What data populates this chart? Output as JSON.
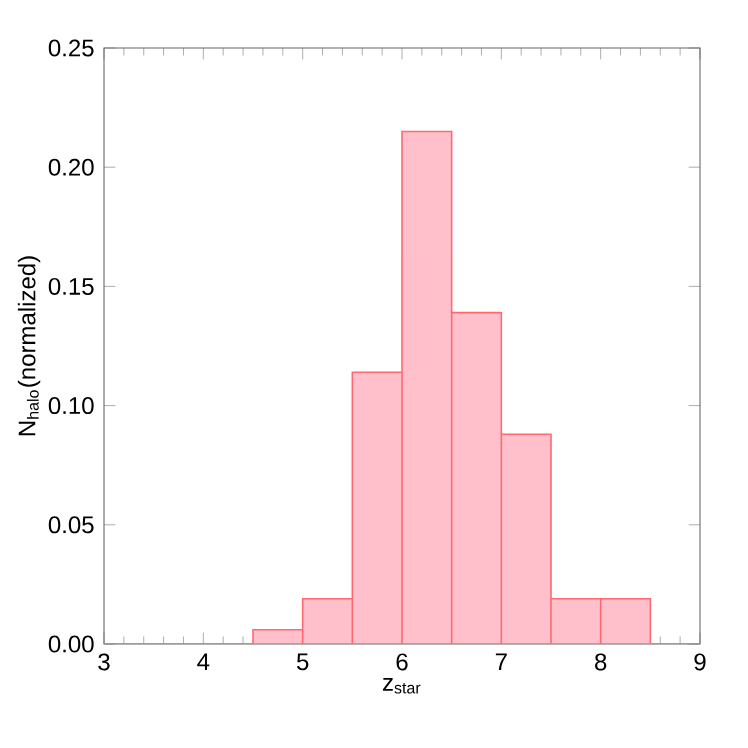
{
  "chart_data": {
    "type": "histogram",
    "xlabel": "z$_{star}$",
    "ylabel": "N$_{halo}$(normalized)",
    "bins": [
      3.0,
      3.5,
      4.0,
      4.5,
      5.0,
      5.5,
      6.0,
      6.5,
      7.0,
      7.5,
      8.0,
      8.5,
      9.0
    ],
    "values": [
      0,
      0,
      0,
      0.006,
      0.019,
      0.114,
      0.215,
      0.139,
      0.088,
      0.019,
      0.019,
      0
    ],
    "color": "#ffc0cb",
    "xlim": [
      3,
      9
    ],
    "ylim": [
      0,
      0.25
    ],
    "xticks": [
      3,
      4,
      5,
      6,
      7,
      8,
      9
    ],
    "yticks": [
      {
        "value": 0,
        "label": "0.00"
      },
      {
        "value": 0.05,
        "label": "0.05"
      },
      {
        "value": 0.1,
        "label": "0.10"
      },
      {
        "value": 0.15,
        "label": "0.15"
      },
      {
        "value": 0.2,
        "label": "0.20"
      },
      {
        "value": 0.25,
        "label": "0.25"
      }
    ],
    "grid": false
  }
}
